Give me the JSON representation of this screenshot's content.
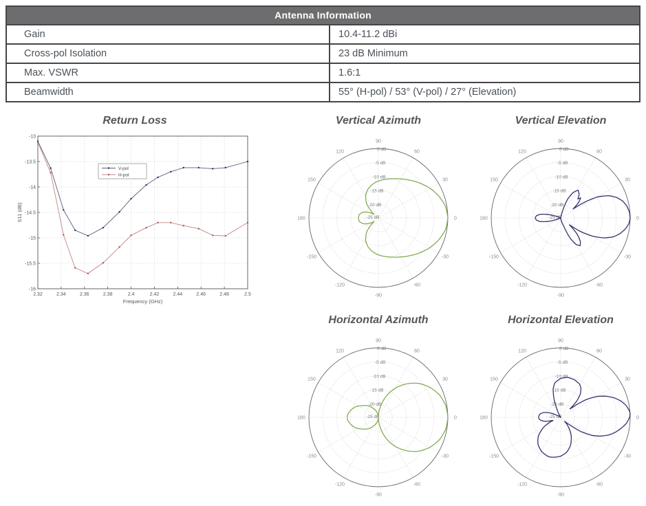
{
  "table": {
    "title": "Antenna Information",
    "rows": [
      {
        "label": "Gain",
        "value": "10.4-11.2 dBi"
      },
      {
        "label": "Cross-pol Isolation",
        "value": "23 dB Minimum"
      },
      {
        "label": "Max. VSWR",
        "value": "1.6:1"
      },
      {
        "label": "Beamwidth",
        "value": "55° (H-pol) / 53° (V-pol) / 27° (Elevation)"
      }
    ],
    "header_bg": "#6d6d6f",
    "header_text_color": "#ffffff",
    "border_color": "#454547",
    "text_color": "#4a5158"
  },
  "chart_data": [
    {
      "id": "return-loss",
      "type": "line",
      "title": "Return Loss",
      "xlabel": "Frequency (GHz)",
      "ylabel": "S11 (dB)",
      "xlim": [
        2.32,
        2.5
      ],
      "ylim": [
        -16,
        -13
      ],
      "xticks": [
        2.32,
        2.34,
        2.36,
        2.38,
        2.4,
        2.42,
        2.44,
        2.46,
        2.48,
        2.5
      ],
      "xtick_labels": [
        "2.32",
        "2.34",
        "2.36",
        "2.38",
        "2.4",
        "2.42",
        "2.44",
        "2.46",
        "2.48",
        "2.5"
      ],
      "yticks": [
        -13,
        -13.5,
        -14,
        -14.5,
        -15,
        -15.5,
        -16
      ],
      "ytick_labels": [
        "-13",
        "-13.5",
        "-14",
        "-14.5",
        "-15",
        "-15.5",
        "-16"
      ],
      "grid": true,
      "legend": {
        "position": "upper-center",
        "entries": [
          "V-pol",
          "H-pol"
        ]
      },
      "series": [
        {
          "name": "V-pol",
          "color": "#5c5c80",
          "marker": "#2c2c50",
          "x": [
            2.32,
            2.331,
            2.342,
            2.352,
            2.363,
            2.376,
            2.39,
            2.4,
            2.413,
            2.423,
            2.434,
            2.445,
            2.458,
            2.47,
            2.481,
            2.5
          ],
          "y": [
            -13.1,
            -13.63,
            -14.45,
            -14.85,
            -14.96,
            -14.8,
            -14.49,
            -14.23,
            -13.96,
            -13.81,
            -13.7,
            -13.62,
            -13.62,
            -13.64,
            -13.62,
            -13.5
          ]
        },
        {
          "name": "H-pol",
          "color": "#c28484",
          "marker": "#a25454",
          "x": [
            2.32,
            2.331,
            2.342,
            2.352,
            2.363,
            2.376,
            2.39,
            2.4,
            2.413,
            2.423,
            2.434,
            2.445,
            2.458,
            2.47,
            2.481,
            2.5
          ],
          "y": [
            -13.12,
            -13.72,
            -14.94,
            -15.59,
            -15.7,
            -15.49,
            -15.18,
            -14.95,
            -14.8,
            -14.7,
            -14.7,
            -14.76,
            -14.82,
            -14.95,
            -14.96,
            -14.7
          ]
        }
      ]
    },
    {
      "id": "vertical-azimuth",
      "type": "polar",
      "title": "Vertical Azimuth",
      "color": "#84aa54",
      "rmin_db": -25,
      "r_ticks": [
        [
          1,
          "0 dB"
        ],
        [
          0.8,
          "-5 dB"
        ],
        [
          0.6,
          "-10 dB"
        ],
        [
          0.4,
          "-15 dB"
        ],
        [
          0.2,
          "-20 dB"
        ],
        [
          0.02,
          "-25 dB"
        ]
      ],
      "angle_ticks": [
        [
          0,
          "0"
        ],
        [
          30,
          "30"
        ],
        [
          60,
          "60"
        ],
        [
          90,
          "90"
        ],
        [
          120,
          "120"
        ],
        [
          150,
          "150"
        ],
        [
          180,
          "180"
        ],
        [
          210,
          "-150"
        ],
        [
          240,
          "-120"
        ],
        [
          270,
          "-90"
        ],
        [
          300,
          "-60"
        ],
        [
          330,
          "-30"
        ]
      ],
      "samples_deg_db": [
        [
          -180,
          -17.8
        ],
        [
          -170,
          -18
        ],
        [
          -160,
          -19
        ],
        [
          -150,
          -21
        ],
        [
          -140,
          -23
        ],
        [
          -130,
          -18.5
        ],
        [
          -120,
          -15.8
        ],
        [
          -110,
          -14
        ],
        [
          -100,
          -12.7
        ],
        [
          -90,
          -11.7
        ],
        [
          -80,
          -10.9
        ],
        [
          -70,
          -10
        ],
        [
          -60,
          -8.8
        ],
        [
          -50,
          -7.3
        ],
        [
          -40,
          -5.5
        ],
        [
          -30,
          -3.6
        ],
        [
          -20,
          -1.9
        ],
        [
          -10,
          -0.5
        ],
        [
          0,
          0
        ],
        [
          10,
          -0.5
        ],
        [
          20,
          -1.9
        ],
        [
          30,
          -3.6
        ],
        [
          40,
          -5.5
        ],
        [
          50,
          -7.3
        ],
        [
          60,
          -8.8
        ],
        [
          70,
          -10
        ],
        [
          80,
          -10.9
        ],
        [
          90,
          -11.7
        ],
        [
          100,
          -12.7
        ],
        [
          110,
          -14
        ],
        [
          120,
          -15.8
        ],
        [
          130,
          -18.5
        ],
        [
          140,
          -23
        ],
        [
          150,
          -21
        ],
        [
          160,
          -19
        ],
        [
          170,
          -18
        ],
        [
          180,
          -17.8
        ]
      ]
    },
    {
      "id": "vertical-elevation",
      "type": "polar",
      "title": "Vertical Elevation",
      "color": "#31316d",
      "rmin_db": -25,
      "r_ticks": [
        [
          1,
          "0 dB"
        ],
        [
          0.8,
          "-5 dB"
        ],
        [
          0.6,
          "-10 dB"
        ],
        [
          0.4,
          "-15 dB"
        ],
        [
          0.2,
          "-20 dB"
        ],
        [
          0.02,
          "-25 dB"
        ]
      ],
      "angle_ticks": [
        [
          0,
          "0"
        ],
        [
          30,
          "30"
        ],
        [
          60,
          "60"
        ],
        [
          90,
          "90"
        ],
        [
          120,
          "120"
        ],
        [
          150,
          "150"
        ],
        [
          180,
          "180"
        ],
        [
          210,
          "-150"
        ],
        [
          240,
          "-120"
        ],
        [
          270,
          "-90"
        ],
        [
          300,
          "-60"
        ],
        [
          330,
          "-30"
        ]
      ],
      "samples_deg_db": [
        [
          -180,
          -15.8
        ],
        [
          -175,
          -16.2
        ],
        [
          -170,
          -17.5
        ],
        [
          -165,
          -20
        ],
        [
          -160,
          -23
        ],
        [
          -155,
          -24.6
        ],
        [
          -150,
          -25
        ],
        [
          -100,
          -25
        ],
        [
          -90,
          -25
        ],
        [
          -80,
          -24.5
        ],
        [
          -70,
          -22
        ],
        [
          -65,
          -17
        ],
        [
          -60,
          -14
        ],
        [
          -55,
          -12.8
        ],
        [
          -50,
          -14
        ],
        [
          -45,
          -16.5
        ],
        [
          -40,
          -20
        ],
        [
          -38,
          -21
        ],
        [
          -35,
          -17
        ],
        [
          -30,
          -12
        ],
        [
          -25,
          -8
        ],
        [
          -20,
          -5
        ],
        [
          -15,
          -3
        ],
        [
          -10,
          -1.5
        ],
        [
          -5,
          -0.4
        ],
        [
          0,
          0
        ],
        [
          5,
          -0.2
        ],
        [
          10,
          -0.8
        ],
        [
          15,
          -1.8
        ],
        [
          20,
          -3.5
        ],
        [
          25,
          -6
        ],
        [
          30,
          -10
        ],
        [
          33,
          -14
        ],
        [
          36,
          -19.5
        ],
        [
          40,
          -17
        ],
        [
          45,
          -14.8
        ],
        [
          48,
          -15.8
        ],
        [
          52,
          -14.2
        ],
        [
          58,
          -13.2
        ],
        [
          64,
          -14.8
        ],
        [
          70,
          -18
        ],
        [
          75,
          -22.5
        ],
        [
          80,
          -24.5
        ],
        [
          90,
          -25
        ],
        [
          150,
          -25
        ],
        [
          160,
          -23
        ],
        [
          165,
          -20
        ],
        [
          170,
          -17.5
        ],
        [
          175,
          -16.2
        ],
        [
          180,
          -15.8
        ]
      ]
    },
    {
      "id": "horizontal-azimuth",
      "type": "polar",
      "title": "Horizontal Azimuth",
      "color": "#84aa54",
      "rmin_db": -25,
      "r_ticks": [
        [
          1,
          "0 dB"
        ],
        [
          0.8,
          "-5 dB"
        ],
        [
          0.6,
          "-10 dB"
        ],
        [
          0.4,
          "-15 dB"
        ],
        [
          0.2,
          "-20 dB"
        ],
        [
          0.02,
          "-25 dB"
        ]
      ],
      "angle_ticks": [
        [
          0,
          "0"
        ],
        [
          30,
          "30"
        ],
        [
          60,
          "60"
        ],
        [
          90,
          "90"
        ],
        [
          120,
          "120"
        ],
        [
          150,
          "150"
        ],
        [
          180,
          "180"
        ],
        [
          210,
          "-150"
        ],
        [
          240,
          "-120"
        ],
        [
          270,
          "-90"
        ],
        [
          300,
          "-60"
        ],
        [
          330,
          "-30"
        ]
      ],
      "samples_deg_db": [
        [
          -180,
          -13.75
        ],
        [
          -175,
          -13.9
        ],
        [
          -165,
          -14.8
        ],
        [
          -155,
          -16
        ],
        [
          -143,
          -18
        ],
        [
          -130,
          -19.7
        ],
        [
          -120,
          -21.3
        ],
        [
          -110,
          -22.5
        ],
        [
          -100,
          -23.8
        ],
        [
          -90,
          -24.8
        ],
        [
          -80,
          -21.5
        ],
        [
          -70,
          -17
        ],
        [
          -60,
          -12.9
        ],
        [
          -50,
          -9.3
        ],
        [
          -40,
          -6
        ],
        [
          -30,
          -3.5
        ],
        [
          -20,
          -1.55
        ],
        [
          -10,
          -0.4
        ],
        [
          0,
          0
        ],
        [
          10,
          -0.4
        ],
        [
          20,
          -1.55
        ],
        [
          30,
          -3.5
        ],
        [
          40,
          -6
        ],
        [
          50,
          -9.3
        ],
        [
          60,
          -12.9
        ],
        [
          70,
          -17
        ],
        [
          80,
          -21.5
        ],
        [
          90,
          -24.8
        ],
        [
          100,
          -23.8
        ],
        [
          110,
          -22.5
        ],
        [
          120,
          -21.3
        ],
        [
          130,
          -19.7
        ],
        [
          143,
          -18
        ],
        [
          155,
          -16
        ],
        [
          165,
          -14.8
        ],
        [
          175,
          -13.9
        ],
        [
          180,
          -13.75
        ]
      ]
    },
    {
      "id": "horizontal-elevation",
      "type": "polar",
      "title": "Horizontal Elevation",
      "color": "#31316d",
      "rmin_db": -25,
      "r_ticks": [
        [
          1,
          "0 dB"
        ],
        [
          0.8,
          "-5 dB"
        ],
        [
          0.6,
          "-10 dB"
        ],
        [
          0.4,
          "-15 dB"
        ],
        [
          0.2,
          "-20 dB"
        ],
        [
          0.02,
          "-25 dB"
        ]
      ],
      "angle_ticks": [
        [
          0,
          "0"
        ],
        [
          30,
          "30"
        ],
        [
          60,
          "60"
        ],
        [
          90,
          "90"
        ],
        [
          120,
          "120"
        ],
        [
          150,
          "150"
        ],
        [
          180,
          "180"
        ],
        [
          210,
          "-150"
        ],
        [
          240,
          "-120"
        ],
        [
          270,
          "-90"
        ],
        [
          300,
          "-60"
        ],
        [
          330,
          "-30"
        ]
      ],
      "samples_deg_db": [
        [
          -180,
          -17
        ],
        [
          -175,
          -17.3
        ],
        [
          -170,
          -18
        ],
        [
          -165,
          -19.5
        ],
        [
          -160,
          -21.5
        ],
        [
          -158,
          -22
        ],
        [
          -155,
          -20.5
        ],
        [
          -150,
          -18
        ],
        [
          -140,
          -14.5
        ],
        [
          -130,
          -12.3
        ],
        [
          -120,
          -11
        ],
        [
          -110,
          -10.3
        ],
        [
          -105,
          -10.2
        ],
        [
          -100,
          -10.4
        ],
        [
          -90,
          -11
        ],
        [
          -80,
          -12.3
        ],
        [
          -70,
          -14.5
        ],
        [
          -60,
          -17.5
        ],
        [
          -50,
          -21
        ],
        [
          -45,
          -23
        ],
        [
          -40,
          -21
        ],
        [
          -35,
          -16
        ],
        [
          -30,
          -12
        ],
        [
          -25,
          -9
        ],
        [
          -20,
          -6.5
        ],
        [
          -15,
          -4.5
        ],
        [
          -10,
          -2.8
        ],
        [
          -5,
          -1.2
        ],
        [
          0,
          -0.2
        ],
        [
          3,
          0
        ],
        [
          5,
          -0.1
        ],
        [
          10,
          -1
        ],
        [
          15,
          -2.5
        ],
        [
          20,
          -4.5
        ],
        [
          25,
          -7
        ],
        [
          30,
          -10
        ],
        [
          35,
          -14
        ],
        [
          40,
          -19.5
        ],
        [
          42,
          -20.5
        ],
        [
          45,
          -17
        ],
        [
          50,
          -14
        ],
        [
          55,
          -12.3
        ],
        [
          60,
          -11.3
        ],
        [
          70,
          -10.6
        ],
        [
          80,
          -10.4
        ],
        [
          90,
          -11
        ],
        [
          100,
          -12.5
        ],
        [
          105,
          -14.5
        ],
        [
          110,
          -18
        ],
        [
          115,
          -22
        ],
        [
          120,
          -24
        ],
        [
          130,
          -25
        ],
        [
          140,
          -25
        ],
        [
          150,
          -24
        ],
        [
          155,
          -22
        ],
        [
          160,
          -20
        ],
        [
          165,
          -18.5
        ],
        [
          170,
          -17.6
        ],
        [
          175,
          -17.2
        ],
        [
          180,
          -17
        ]
      ]
    }
  ],
  "style": {
    "grid_color": "#c6c6c6",
    "axis_color": "#666666",
    "tick_text_color": "#555555",
    "polar_label_color": "#8a8a8a"
  }
}
